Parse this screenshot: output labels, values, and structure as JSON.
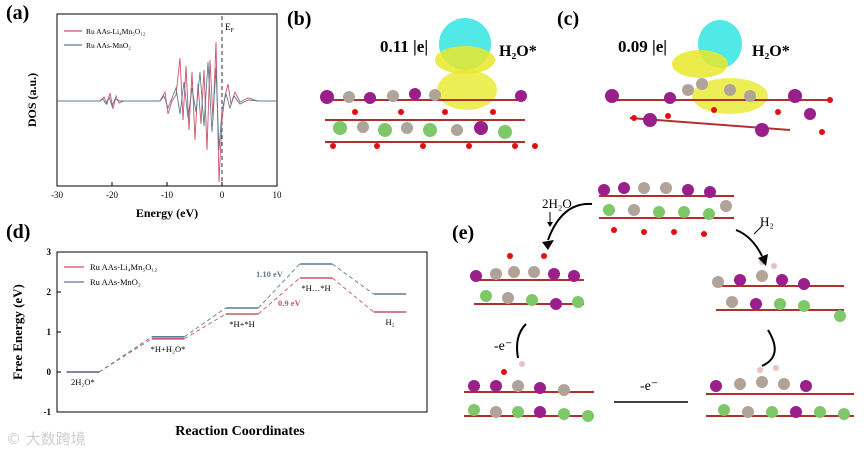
{
  "panels": {
    "a": {
      "label": "(a)",
      "legend": [
        "Ru AAs-Li₄Mn₅O₁₂",
        "Ru AAs-MnO₂"
      ],
      "ylabel": "DOS (a.u.)",
      "xlabel": "Energy (eV)",
      "xticks": [
        "-30",
        "-20",
        "-10",
        "0",
        "10"
      ],
      "fermi_label": "E",
      "fermi_sub": "F"
    },
    "b": {
      "label": "(b)",
      "charge": "0.11 |e|",
      "adsorbate": "H₂O*"
    },
    "c": {
      "label": "(c)",
      "charge": "0.09 |e|",
      "adsorbate": "H₂O*"
    },
    "d": {
      "label": "(d)"
    },
    "e": {
      "label": "(e)",
      "step1": "2H₂O",
      "step2": "H₂",
      "electron1": "-e⁻",
      "electron2": "-e⁻"
    }
  },
  "colors": {
    "series1": "#c9566a",
    "series2": "#5f7a94",
    "isosurface_pos": "#e8e82a",
    "isosurface_neg": "#3ee6e6"
  },
  "watermark": "© 大数跨境",
  "chart_data": [
    {
      "type": "line",
      "title": "",
      "xlabel": "Energy (eV)",
      "ylabel": "DOS (a.u.)",
      "xlim": [
        -30,
        10
      ],
      "legend": [
        "Ru AAs-Li₄Mn₅O₁₂",
        "Ru AAs-MnO₂"
      ],
      "annotation": "E_F at 0"
    },
    {
      "type": "line",
      "title": "",
      "xlabel": "Reaction Coordinates",
      "ylabel": "Free Energy (eV)",
      "ylim": [
        -1,
        3
      ],
      "yticks": [
        "-1",
        "0",
        "1",
        "2",
        "3"
      ],
      "states": [
        "2H₂O*",
        "*H+H₂O*",
        "*H+*H",
        "*H…*H",
        "H₂"
      ],
      "series": [
        {
          "name": "Ru AAs-Li₄Mn₅O₁₂",
          "values": [
            0,
            0.83,
            1.45,
            2.35,
            1.5
          ]
        },
        {
          "name": "Ru AAs-MnO₂",
          "values": [
            0,
            0.88,
            1.6,
            2.7,
            1.95
          ]
        }
      ],
      "annotations": [
        "1.10 eV",
        "0.9 eV"
      ]
    }
  ]
}
